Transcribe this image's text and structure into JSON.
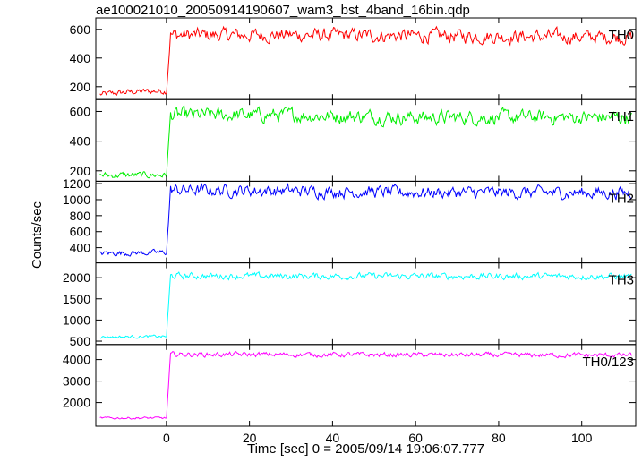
{
  "title": "ae100021010_20050914190607_wam3_bst_4band_16bin.qdp",
  "ylabel": "Counts/sec",
  "xlabel": "Time [sec] 0 = 2005/09/14 19:06:07.777",
  "chart_data": {
    "type": "line",
    "x_ticks": [
      0,
      20,
      40,
      60,
      80,
      100
    ],
    "xlim": [
      -17,
      113
    ],
    "panels": [
      {
        "name": "TH0",
        "color": "#ff0000",
        "ylim": [
          110,
          680
        ],
        "y_ticks": [
          200,
          400,
          600
        ],
        "breakpoints": [
          [
            -16,
            145
          ],
          [
            -8,
            165
          ],
          [
            0,
            170
          ],
          [
            1,
            560
          ],
          [
            30,
            560
          ],
          [
            60,
            555
          ],
          [
            112,
            545
          ]
        ],
        "noise": 38
      },
      {
        "name": "TH1",
        "color": "#00ee00",
        "ylim": [
          130,
          680
        ],
        "y_ticks": [
          200,
          400,
          600
        ],
        "breakpoints": [
          [
            -16,
            170
          ],
          [
            0,
            172
          ],
          [
            1,
            575
          ],
          [
            30,
            575
          ],
          [
            60,
            560
          ],
          [
            112,
            560
          ]
        ],
        "noise": 38
      },
      {
        "name": "TH2",
        "color": "#0000ff",
        "ylim": [
          210,
          1230
        ],
        "y_ticks": [
          400,
          600,
          800,
          1000,
          1200
        ],
        "breakpoints": [
          [
            -16,
            330
          ],
          [
            0,
            340
          ],
          [
            1,
            1120
          ],
          [
            30,
            1110
          ],
          [
            60,
            1090
          ],
          [
            112,
            1085
          ]
        ],
        "noise": 60
      },
      {
        "name": "TH3",
        "color": "#00ffff",
        "ylim": [
          420,
          2350
        ],
        "y_ticks": [
          500,
          1000,
          1500,
          2000
        ],
        "breakpoints": [
          [
            -16,
            600
          ],
          [
            0,
            610
          ],
          [
            1,
            2040
          ],
          [
            112,
            2030
          ]
        ],
        "noise": 60
      },
      {
        "name": "TH0/123",
        "color": "#ff00ff",
        "ylim": [
          900,
          4700
        ],
        "y_ticks": [
          2000,
          3000,
          4000
        ],
        "breakpoints": [
          [
            -16,
            1280
          ],
          [
            0,
            1280
          ],
          [
            1,
            4240
          ],
          [
            112,
            4200
          ]
        ],
        "noise": 90
      }
    ]
  }
}
